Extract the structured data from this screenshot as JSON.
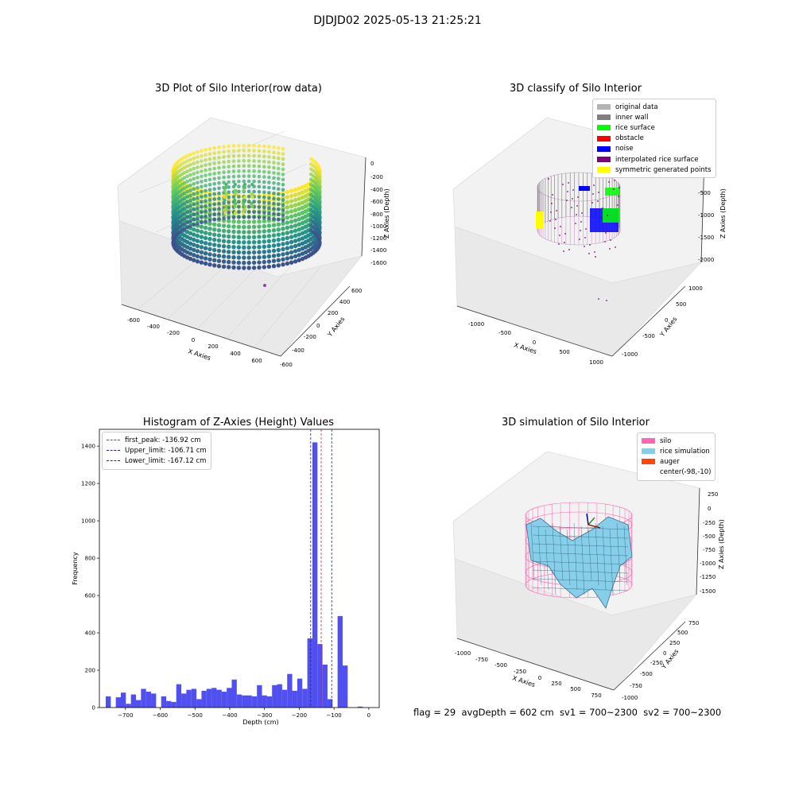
{
  "figure": {
    "suptitle": "DJDJD02 2025-05-13 21:25:21",
    "footer": "flag = 29  avgDepth = 602 cm  sv1 = 700~2300  sv2 = 700~2300"
  },
  "colors": {
    "blue_hist": "#5050f0",
    "peak": "#d62728",
    "limit": "#1f1fa0",
    "silo_pink": "#ff69b4",
    "rice_sim": "#87ceeb",
    "auger": "#ff4500"
  },
  "chart_data": [
    {
      "type": "scatter",
      "title": "3D Plot of Silo Interior(row data)",
      "xlabel": "X Axies",
      "ylabel": "Y Axies",
      "zlabel": "Z Axies (Depth)",
      "x_ticks": [
        "-600",
        "-400",
        "-200",
        "0",
        "200",
        "400",
        "600"
      ],
      "y_ticks": [
        "-600",
        "-400",
        "-200",
        "0",
        "200",
        "400",
        "600"
      ],
      "z_ticks": [
        "0",
        "-200",
        "-400",
        "-600",
        "-800",
        "-1000",
        "-1200",
        "-1400",
        "-1600"
      ],
      "colormap": "viridis",
      "grid": true
    },
    {
      "type": "scatter",
      "title": "3D classify of Silo Interior",
      "xlabel": "X Axies",
      "ylabel": "Y Axies",
      "zlabel": "Z Axies (Depth)",
      "x_ticks": [
        "-1000",
        "-500",
        "0",
        "500",
        "1000"
      ],
      "y_ticks": [
        "-1000",
        "-500",
        "0",
        "500",
        "1000"
      ],
      "z_ticks": [
        "0",
        "-500",
        "-1000",
        "-1500",
        "-2000"
      ],
      "legend": [
        {
          "label": "original data",
          "color": "#b4b4b4"
        },
        {
          "label": "inner wall",
          "color": "#808080"
        },
        {
          "label": "rice surface",
          "color": "#00ff00"
        },
        {
          "label": "obstacle",
          "color": "#ff0000"
        },
        {
          "label": "noise",
          "color": "#0000ff"
        },
        {
          "label": "interpolated rice surface",
          "color": "#800080"
        },
        {
          "label": "symmetric generated points",
          "color": "#ffff00"
        }
      ],
      "legend_position": "upper-right",
      "grid": true
    },
    {
      "type": "bar",
      "title": "Histogram of Z-Axies (Height) Values",
      "xlabel": "Depth (cm)",
      "ylabel": "Frequency",
      "xlim": [
        -775,
        30
      ],
      "ylim": [
        0,
        1490
      ],
      "x_ticks": [
        -700,
        -600,
        -500,
        -400,
        -300,
        -200,
        -100,
        0
      ],
      "y_ticks": [
        0,
        200,
        400,
        600,
        800,
        1000,
        1200,
        1400
      ],
      "bin_width": 14.5,
      "bins": [
        [
          -749.5,
          60
        ],
        [
          -720.5,
          55
        ],
        [
          -706,
          80
        ],
        [
          -691.5,
          20
        ],
        [
          -677,
          70
        ],
        [
          -662.5,
          40
        ],
        [
          -648,
          100
        ],
        [
          -633.5,
          85
        ],
        [
          -619,
          75
        ],
        [
          -590,
          60
        ],
        [
          -575.5,
          35
        ],
        [
          -561,
          30
        ],
        [
          -546.5,
          125
        ],
        [
          -532,
          75
        ],
        [
          -517.5,
          95
        ],
        [
          -503,
          100
        ],
        [
          -488.5,
          45
        ],
        [
          -474,
          90
        ],
        [
          -459.5,
          100
        ],
        [
          -445,
          105
        ],
        [
          -430.5,
          95
        ],
        [
          -416,
          85
        ],
        [
          -401.5,
          105
        ],
        [
          -387,
          150
        ],
        [
          -372.5,
          70
        ],
        [
          -358,
          65
        ],
        [
          -343.5,
          65
        ],
        [
          -329,
          60
        ],
        [
          -314.5,
          120
        ],
        [
          -300,
          65
        ],
        [
          -285.5,
          60
        ],
        [
          -271,
          120
        ],
        [
          -256.5,
          125
        ],
        [
          -242,
          95
        ],
        [
          -227.5,
          180
        ],
        [
          -213,
          90
        ],
        [
          -198.5,
          155
        ],
        [
          -184,
          100
        ],
        [
          -169.5,
          370
        ],
        [
          -155,
          1420
        ],
        [
          -140.5,
          340
        ],
        [
          -126,
          230
        ],
        [
          -111.5,
          45
        ],
        [
          -82.5,
          490
        ],
        [
          -68,
          225
        ],
        [
          -24.5,
          5
        ]
      ],
      "vlines": [
        {
          "label": "first_peak: -136.92 cm",
          "x": -136.92,
          "color": "#d62728"
        },
        {
          "label": "Upper_limit: -106.71 cm",
          "x": -106.71,
          "color": "#1f1fa0"
        },
        {
          "label": "Lower_limit: -167.12 cm",
          "x": -167.12,
          "color": "#1f1fa0"
        }
      ],
      "legend_position": "upper-left"
    },
    {
      "type": "surface",
      "title": "3D simulation of Silo Interior",
      "xlabel": "X Axies",
      "ylabel": "Y Axies",
      "zlabel": "Z Axies (Depth)",
      "x_ticks": [
        "-1000",
        "-750",
        "-500",
        "-250",
        "0",
        "250",
        "500",
        "750"
      ],
      "y_ticks": [
        "-1000",
        "-750",
        "-500",
        "-250",
        "0",
        "250",
        "500",
        "750"
      ],
      "z_ticks": [
        "250",
        "0",
        "-250",
        "-500",
        "-750",
        "-1000",
        "-1250",
        "-1500"
      ],
      "legend": [
        {
          "label": "silo",
          "color": "#ff69b4"
        },
        {
          "label": "rice simulation",
          "color": "#87ceeb"
        },
        {
          "label": "auger",
          "color": "#ff4500"
        },
        {
          "label": "center(-98,-10)",
          "color": ""
        }
      ],
      "legend_position": "upper-right"
    }
  ]
}
